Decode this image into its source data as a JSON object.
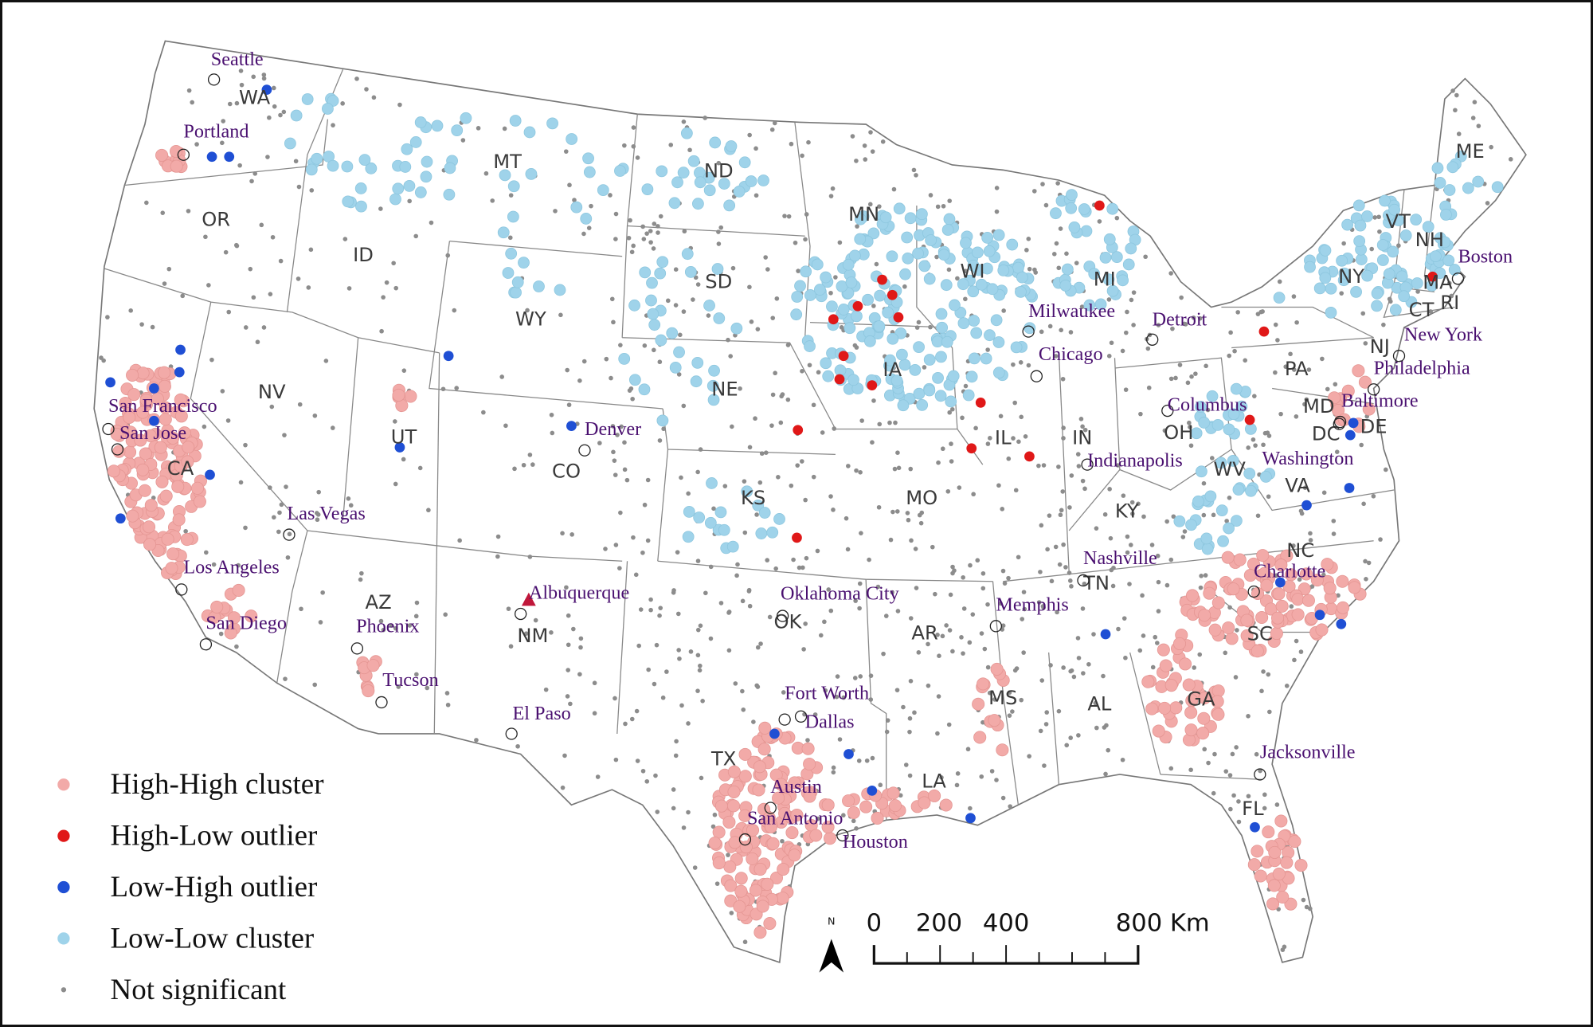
{
  "legend": [
    {
      "label": "High-High cluster",
      "color": "#f2aaa8"
    },
    {
      "label": "High-Low outlier",
      "color": "#e01818"
    },
    {
      "label": "Low-High outlier",
      "color": "#1f4fd4"
    },
    {
      "label": "Low-Low cluster",
      "color": "#9fd3ea"
    },
    {
      "label": "Not significant",
      "color": "#8c8c8c"
    }
  ],
  "states": [
    "WA",
    "OR",
    "CA",
    "NV",
    "ID",
    "MT",
    "WY",
    "UT",
    "CO",
    "AZ",
    "NM",
    "ND",
    "SD",
    "NE",
    "KS",
    "OK",
    "TX",
    "MN",
    "IA",
    "MO",
    "AR",
    "LA",
    "WI",
    "IL",
    "MS",
    "MI",
    "IN",
    "OH",
    "KY",
    "TN",
    "AL",
    "GA",
    "FL",
    "SC",
    "NC",
    "VA",
    "WV",
    "PA",
    "NY",
    "VT",
    "NH",
    "ME",
    "MA",
    "RI",
    "CT",
    "NJ",
    "MD",
    "DE",
    "DC"
  ],
  "cities": [
    "Seattle",
    "Portland",
    "San Francisco",
    "San Jose",
    "Los Angeles",
    "San Diego",
    "Las Vegas",
    "Phoenix",
    "Tucson",
    "Albuquerque",
    "El Paso",
    "Denver",
    "Oklahoma City",
    "Fort Worth",
    "Dallas",
    "Austin",
    "San Antonio",
    "Houston",
    "Memphis",
    "Nashville",
    "Milwaukee",
    "Chicago",
    "Detroit",
    "Indianapolis",
    "Columbus",
    "Charlotte",
    "Jacksonville",
    "Washington",
    "Baltimore",
    "Philadelphia",
    "New York",
    "Boston"
  ],
  "scale": {
    "north": "N",
    "ticks": [
      "0",
      "200",
      "400",
      "800 Km"
    ]
  }
}
